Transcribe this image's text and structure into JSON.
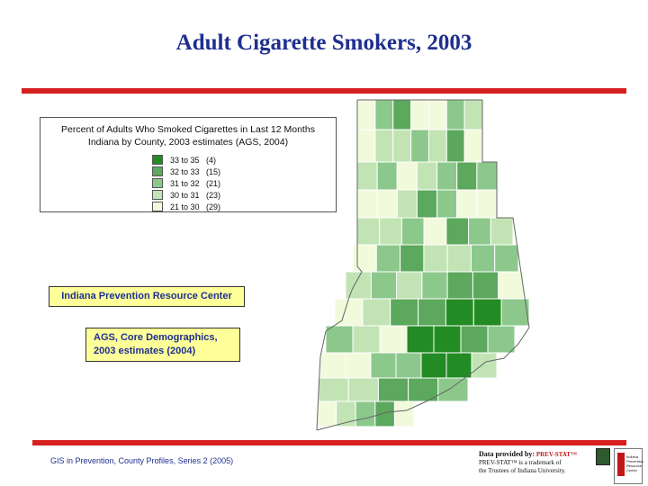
{
  "title": "Adult Cigarette Smokers, 2003",
  "legend": {
    "title_line1": "Percent of Adults Who Smoked Cigarettes in Last 12 Months",
    "title_line2": "Indiana by County, 2003 estimates (AGS, 2004)",
    "classes": [
      {
        "range": "33 to 35",
        "count": "(4)",
        "color": "#238b23"
      },
      {
        "range": "32 to 33",
        "count": "(15)",
        "color": "#5ca85c"
      },
      {
        "range": "31 to 32",
        "count": "(21)",
        "color": "#8cc88c"
      },
      {
        "range": "30 to 31",
        "count": "(23)",
        "color": "#c2e4b4"
      },
      {
        "range": "21 to 30",
        "count": "(29)",
        "color": "#f2fadc"
      }
    ]
  },
  "source_box_1": "Indiana Prevention Resource Center",
  "source_box_2": {
    "line1": "AGS, Core Demographics,",
    "line2": "2003 estimates (2004)"
  },
  "footer": "GIS in Prevention, County Profiles, Series 2 (2005)",
  "credit": {
    "line1_prefix": "Data provided by:",
    "line1_brand": "PREV-STAT™",
    "line2": "PREV-STAT™ is a trademark of",
    "line3": "the Trustees of Indiana University."
  },
  "logo_text": [
    "Indiana",
    "Prevention",
    "Resource",
    "Center"
  ]
}
